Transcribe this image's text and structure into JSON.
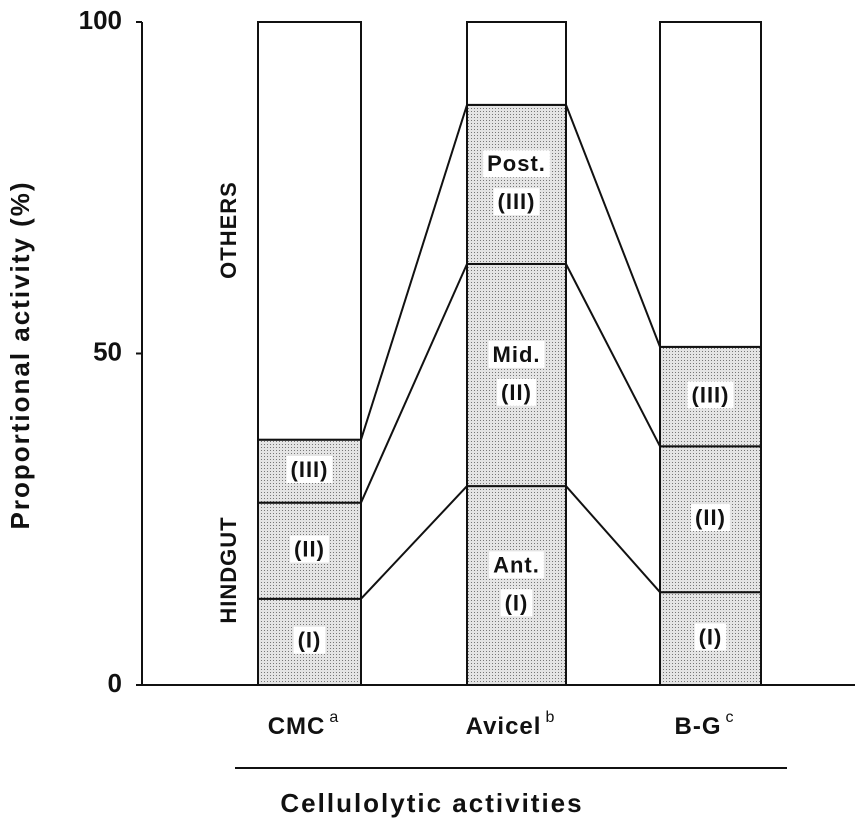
{
  "chart_data": {
    "type": "stacked-bar",
    "x_label": "Cellulolytic activities",
    "y_label": "Proportional activity (%)",
    "categories": [
      "CMC",
      "Avicel",
      "B-G"
    ],
    "category_notes": [
      "a",
      "b",
      "c"
    ],
    "series": [
      {
        "name": "(I)",
        "color": "#d2d2d2",
        "values": [
          13,
          30,
          14
        ]
      },
      {
        "name": "(II)",
        "color": "#d2d2d2",
        "values": [
          14.5,
          33.5,
          22
        ]
      },
      {
        "name": "(III)",
        "color": "#d2d2d2",
        "values": [
          9.5,
          24,
          15
        ]
      },
      {
        "name": "OTHERS",
        "color": "#ffffff",
        "values": [
          63,
          12.5,
          49
        ]
      }
    ],
    "annotations": [
      "Ant.",
      "Mid.",
      "Post."
    ],
    "group_label": "HINDGUT",
    "ylim": [
      0,
      100
    ],
    "yticks": [
      0,
      50,
      100
    ]
  }
}
